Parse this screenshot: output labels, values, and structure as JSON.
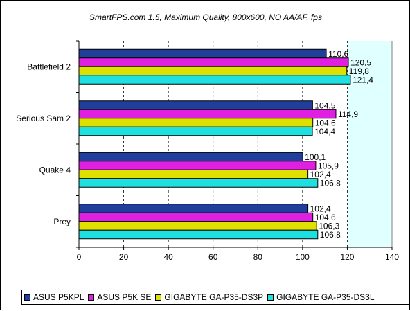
{
  "chart_data": {
    "type": "bar",
    "orientation": "horizontal",
    "title": "SmartFPS.com 1.5, Maximum Quality, 800x600, NO AA/AF, fps",
    "categories": [
      "Battlefield 2",
      "Serious Sam 2",
      "Quake 4",
      "Prey"
    ],
    "series": [
      {
        "name": "ASUS P5KPL",
        "color": "#1f3f9a",
        "values": [
          110.6,
          104.5,
          100.1,
          102.4
        ],
        "labels": [
          "110,6",
          "104,5",
          "100,1",
          "102,4"
        ]
      },
      {
        "name": "ASUS P5K SE",
        "color": "#e020e0",
        "values": [
          120.5,
          114.9,
          105.9,
          104.6
        ],
        "labels": [
          "120,5",
          "114,9",
          "105,9",
          "104,6"
        ]
      },
      {
        "name": "GIGABYTE GA-P35-DS3P",
        "color": "#e0e000",
        "values": [
          119.8,
          104.6,
          102.4,
          106.3
        ],
        "labels": [
          "119,8",
          "104,6",
          "102,4",
          "106,3"
        ]
      },
      {
        "name": "GIGABYTE GA-P35-DS3L",
        "color": "#1fe0e0",
        "values": [
          121.4,
          104.4,
          106.8,
          106.8
        ],
        "labels": [
          "121,4",
          "104,4",
          "106,8",
          "106,8"
        ]
      }
    ],
    "xlim": [
      0,
      140
    ],
    "xticks": [
      "0",
      "20",
      "40",
      "60",
      "80",
      "100",
      "120",
      "140"
    ],
    "grid": "vertical-dashed",
    "legend": "bottom",
    "plot_background": "#e0ffff"
  }
}
